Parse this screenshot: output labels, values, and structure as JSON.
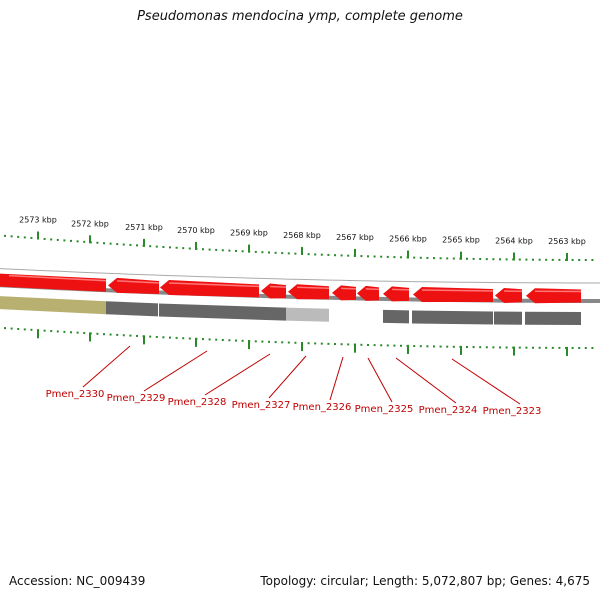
{
  "title": "Pseudomonas mendocina ymp, complete genome",
  "footer": {
    "accession": "Accession: NC_009439",
    "summary": "Topology: circular; Length: 5,072,807 bp; Genes: 4,675"
  },
  "colors": {
    "gene": "#ee1111",
    "gene_highlight": "#ff7777",
    "backbone": "#888888",
    "tick": "#2a8a2a",
    "label": "#c00000",
    "track_dark": "#666666",
    "track_light": "#bbbbbb",
    "track_olive": "#b8b070"
  },
  "ruler": {
    "labels": [
      "2573 kbp",
      "2572 kbp",
      "2571 kbp",
      "2570 kbp",
      "2569 kbp",
      "2568 kbp",
      "2567 kbp",
      "2566 kbp",
      "2565 kbp",
      "2564 kbp",
      "2563 kbp"
    ]
  },
  "genes": [
    "Pmen_2330",
    "Pmen_2329",
    "Pmen_2328",
    "Pmen_2327",
    "Pmen_2326",
    "Pmen_2325",
    "Pmen_2324",
    "Pmen_2323"
  ]
}
